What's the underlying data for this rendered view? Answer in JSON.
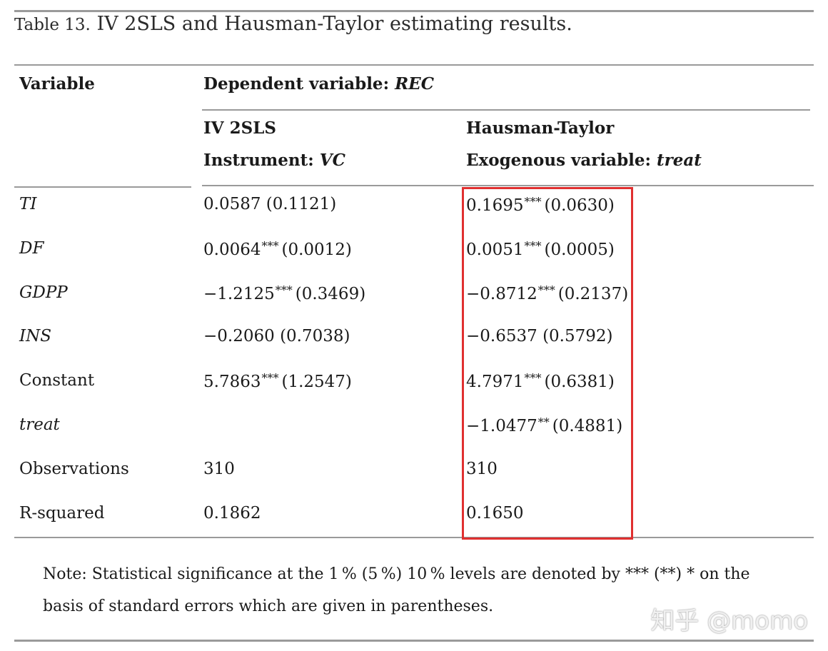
{
  "caption": {
    "label": "Table 13.",
    "text": " IV 2SLS and Hausman-Taylor estimating results."
  },
  "header": {
    "variable": "Variable",
    "dependent_prefix": "Dependent variable: ",
    "dependent_var": "REC",
    "col1_title": "IV 2SLS",
    "col1_sub_prefix": "Instrument: ",
    "col1_sub_var": "VC",
    "col2_title": "Hausman-Taylor",
    "col2_sub_prefix": "Exogenous variable: ",
    "col2_sub_var": "treat"
  },
  "rows": [
    {
      "var": "TI",
      "italic": true,
      "c1": {
        "val": "0.0587",
        "stars": "",
        "se": "(0.1121)"
      },
      "c2": {
        "val": "0.1695",
        "stars": "***",
        "se": "(0.0630)"
      }
    },
    {
      "var": "DF",
      "italic": true,
      "c1": {
        "val": "0.0064",
        "stars": "***",
        "se": "(0.0012)"
      },
      "c2": {
        "val": "0.0051",
        "stars": "***",
        "se": "(0.0005)"
      }
    },
    {
      "var": "GDPP",
      "italic": true,
      "c1": {
        "val": "−1.2125",
        "stars": "***",
        "se": "(0.3469)"
      },
      "c2": {
        "val": "−0.8712",
        "stars": "***",
        "se": "(0.2137)"
      }
    },
    {
      "var": "INS",
      "italic": true,
      "c1": {
        "val": "−0.2060",
        "stars": "",
        "se": "(0.7038)"
      },
      "c2": {
        "val": "−0.6537",
        "stars": "",
        "se": "(0.5792)"
      }
    },
    {
      "var": "Constant",
      "italic": false,
      "c1": {
        "val": "5.7863",
        "stars": "***",
        "se": "(1.2547)"
      },
      "c2": {
        "val": "4.7971",
        "stars": "***",
        "se": "(0.6381)"
      }
    },
    {
      "var": "treat",
      "italic": true,
      "c1": {
        "val": "",
        "stars": "",
        "se": ""
      },
      "c2": {
        "val": "−1.0477",
        "stars": "**",
        "se": "(0.4881)"
      }
    },
    {
      "var": "Observations",
      "italic": false,
      "c1": {
        "val": "310",
        "stars": "",
        "se": ""
      },
      "c2": {
        "val": "310",
        "stars": "",
        "se": ""
      }
    },
    {
      "var": "R-squared",
      "italic": false,
      "c1": {
        "val": "0.1862",
        "stars": "",
        "se": ""
      },
      "c2": {
        "val": "0.1650",
        "stars": "",
        "se": ""
      }
    }
  ],
  "note": "Note: Statistical significance at the 1 % (5 %) 10 % levels are denoted by *** (**) * on the basis of standard errors which are given in parentheses.",
  "watermark": "知乎 @momo",
  "colors": {
    "highlight": "#e03030",
    "rule": "#9a9a9a"
  }
}
